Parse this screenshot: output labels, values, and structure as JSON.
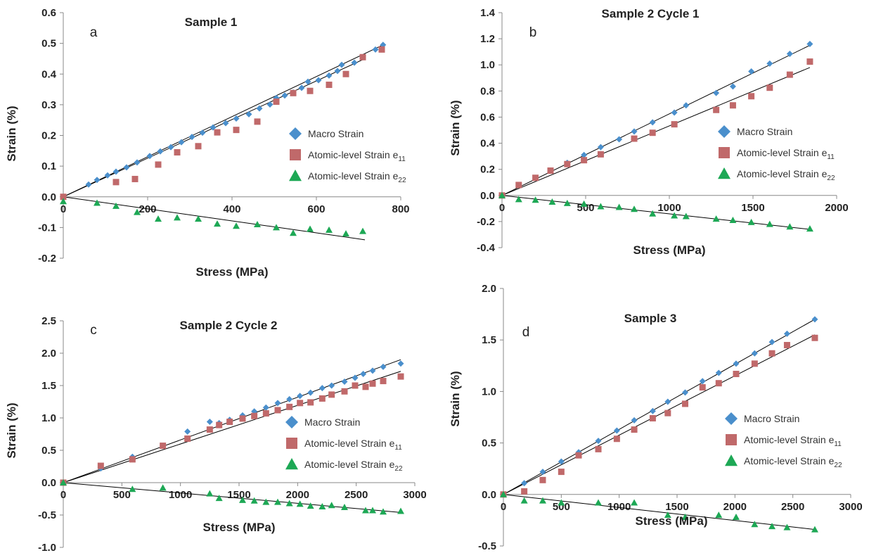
{
  "legend": {
    "macro": "Macro Strain",
    "e11_base": "Atomic-level Strain e",
    "e11_sub": "11",
    "e22_base": "Atomic-level Strain e",
    "e22_sub": "22"
  },
  "colors": {
    "macro": "#4A8FCC",
    "e11": "#C0696A",
    "e22": "#1DA855"
  },
  "chart_data": [
    {
      "type": "scatter",
      "title": "Sample 1",
      "panel_label": "a",
      "xlabel": "Stress (MPa)",
      "ylabel": "Strain (%)",
      "xlim": [
        0,
        800
      ],
      "ylim": [
        -0.2,
        0.6
      ],
      "xticks": [
        0,
        200,
        400,
        600,
        800
      ],
      "yticks": [
        -0.2,
        -0.1,
        0.0,
        0.1,
        0.2,
        0.3,
        0.4,
        0.5,
        0.6
      ],
      "ytick_labels": [
        "-0.2",
        "-0.1",
        "0.0",
        "0.1",
        "0.2",
        "0.3",
        "0.4",
        "0.5",
        "0.6"
      ],
      "series": [
        {
          "name": "Macro Strain",
          "marker": "diamond",
          "x": [
            0,
            60,
            80,
            105,
            125,
            150,
            175,
            205,
            230,
            255,
            280,
            305,
            330,
            355,
            385,
            410,
            440,
            465,
            490,
            505,
            525,
            545,
            565,
            580,
            605,
            630,
            650,
            660,
            690,
            710,
            740,
            758
          ],
          "y": [
            0,
            0.04,
            0.055,
            0.07,
            0.082,
            0.096,
            0.112,
            0.133,
            0.148,
            0.162,
            0.178,
            0.195,
            0.209,
            0.226,
            0.24,
            0.255,
            0.269,
            0.288,
            0.301,
            0.322,
            0.33,
            0.34,
            0.355,
            0.375,
            0.38,
            0.395,
            0.41,
            0.43,
            0.437,
            0.455,
            0.48,
            0.495
          ]
        },
        {
          "name": "Atomic-level Strain e11",
          "marker": "square",
          "x": [
            0,
            125,
            170,
            225,
            270,
            320,
            365,
            410,
            460,
            505,
            545,
            585,
            630,
            670,
            710,
            755
          ],
          "y": [
            0,
            0.048,
            0.058,
            0.105,
            0.145,
            0.165,
            0.21,
            0.218,
            0.245,
            0.31,
            0.338,
            0.345,
            0.365,
            0.4,
            0.455,
            0.48
          ]
        },
        {
          "name": "Atomic-level Strain e22",
          "marker": "triangle",
          "x": [
            0,
            80,
            125,
            175,
            225,
            270,
            320,
            365,
            410,
            460,
            505,
            545,
            585,
            630,
            670,
            710
          ],
          "y": [
            -0.015,
            -0.02,
            -0.03,
            -0.05,
            -0.072,
            -0.068,
            -0.072,
            -0.088,
            -0.095,
            -0.09,
            -0.1,
            -0.118,
            -0.105,
            -0.108,
            -0.12,
            -0.112
          ]
        }
      ],
      "fit_lines": [
        {
          "x": [
            0,
            758
          ],
          "y": [
            0,
            0.495
          ]
        },
        {
          "x": [
            0,
            715
          ],
          "y": [
            0,
            0.45
          ]
        },
        {
          "x": [
            0,
            715
          ],
          "y": [
            0,
            -0.14
          ]
        }
      ]
    },
    {
      "type": "scatter",
      "title": "Sample 2 Cycle 1",
      "panel_label": "b",
      "xlabel": "Stress (MPa)",
      "ylabel": "Strain (%)",
      "xlim": [
        0,
        2000
      ],
      "ylim": [
        -0.4,
        1.4
      ],
      "xticks": [
        0,
        500,
        1000,
        1500,
        2000
      ],
      "yticks": [
        -0.4,
        -0.2,
        0.0,
        0.2,
        0.4,
        0.6,
        0.8,
        1.0,
        1.2,
        1.4
      ],
      "ytick_labels": [
        "-0.4",
        "-0.2",
        "0.0",
        "0.2",
        "0.4",
        "0.6",
        "0.8",
        "1.0",
        "1.2",
        "1.4"
      ],
      "series": [
        {
          "name": "Macro Strain",
          "marker": "diamond",
          "x": [
            0,
            390,
            490,
            590,
            700,
            790,
            900,
            1030,
            1100,
            1280,
            1380,
            1490,
            1600,
            1720,
            1840
          ],
          "y": [
            0,
            0.25,
            0.31,
            0.37,
            0.43,
            0.49,
            0.56,
            0.635,
            0.69,
            0.785,
            0.835,
            0.95,
            1.01,
            1.085,
            1.16
          ]
        },
        {
          "name": "Atomic-level Strain e11",
          "marker": "square",
          "x": [
            0,
            100,
            200,
            290,
            390,
            490,
            590,
            790,
            900,
            1030,
            1280,
            1380,
            1490,
            1600,
            1720,
            1840
          ],
          "y": [
            0,
            0.08,
            0.135,
            0.19,
            0.24,
            0.27,
            0.315,
            0.435,
            0.48,
            0.545,
            0.655,
            0.69,
            0.76,
            0.825,
            0.925,
            1.025
          ]
        },
        {
          "name": "Atomic-level Strain e22",
          "marker": "triangle",
          "x": [
            0,
            100,
            200,
            300,
            390,
            490,
            590,
            700,
            790,
            900,
            1030,
            1100,
            1280,
            1380,
            1490,
            1600,
            1720,
            1840
          ],
          "y": [
            0,
            -0.03,
            -0.035,
            -0.05,
            -0.06,
            -0.065,
            -0.085,
            -0.09,
            -0.105,
            -0.14,
            -0.155,
            -0.16,
            -0.18,
            -0.19,
            -0.205,
            -0.22,
            -0.24,
            -0.255
          ]
        }
      ],
      "fit_lines": [
        {
          "x": [
            0,
            1840
          ],
          "y": [
            0,
            1.15
          ]
        },
        {
          "x": [
            0,
            1840
          ],
          "y": [
            0,
            0.98
          ]
        },
        {
          "x": [
            0,
            1840
          ],
          "y": [
            0,
            -0.26
          ]
        }
      ]
    },
    {
      "type": "scatter",
      "title": "Sample 2 Cycle 2",
      "panel_label": "c",
      "xlabel": "Stress (MPa)",
      "ylabel": "Strain (%)",
      "xlim": [
        0,
        3000
      ],
      "ylim": [
        -1.0,
        2.5
      ],
      "xticks": [
        0,
        500,
        1000,
        1500,
        2000,
        2500,
        3000
      ],
      "yticks": [
        -1.0,
        -0.5,
        0.0,
        0.5,
        1.0,
        1.5,
        2.0,
        2.5
      ],
      "ytick_labels": [
        "-1.0",
        "-0.5",
        "0.0",
        "0.5",
        "1.0",
        "1.5",
        "2.0",
        "2.5"
      ],
      "series": [
        {
          "name": "Macro Strain",
          "marker": "diamond",
          "x": [
            0,
            320,
            590,
            1060,
            1250,
            1330,
            1420,
            1530,
            1630,
            1730,
            1830,
            1930,
            2020,
            2110,
            2210,
            2290,
            2400,
            2490,
            2560,
            2640,
            2730,
            2880
          ],
          "y": [
            0,
            0.22,
            0.4,
            0.79,
            0.94,
            0.92,
            0.97,
            1.04,
            1.1,
            1.16,
            1.23,
            1.29,
            1.34,
            1.39,
            1.46,
            1.5,
            1.56,
            1.62,
            1.68,
            1.73,
            1.79,
            1.84
          ]
        },
        {
          "name": "Atomic-level Strain e11",
          "marker": "square",
          "x": [
            0,
            320,
            590,
            850,
            1060,
            1250,
            1330,
            1420,
            1530,
            1630,
            1730,
            1830,
            1930,
            2020,
            2110,
            2210,
            2290,
            2400,
            2490,
            2580,
            2640,
            2730,
            2880
          ],
          "y": [
            0,
            0.26,
            0.36,
            0.57,
            0.68,
            0.82,
            0.89,
            0.94,
            0.99,
            1.03,
            1.07,
            1.12,
            1.17,
            1.23,
            1.24,
            1.3,
            1.36,
            1.41,
            1.5,
            1.48,
            1.53,
            1.57,
            1.64
          ]
        },
        {
          "name": "Atomic-level Strain e22",
          "marker": "triangle",
          "x": [
            0,
            590,
            850,
            1250,
            1330,
            1530,
            1630,
            1730,
            1830,
            1930,
            2020,
            2110,
            2210,
            2290,
            2400,
            2580,
            2640,
            2730,
            2880
          ],
          "y": [
            0,
            -0.1,
            -0.08,
            -0.17,
            -0.24,
            -0.27,
            -0.28,
            -0.3,
            -0.3,
            -0.32,
            -0.33,
            -0.36,
            -0.37,
            -0.35,
            -0.38,
            -0.43,
            -0.43,
            -0.45,
            -0.44
          ]
        }
      ],
      "fit_lines": [
        {
          "x": [
            0,
            2880
          ],
          "y": [
            0,
            1.9
          ]
        },
        {
          "x": [
            0,
            2880
          ],
          "y": [
            0,
            1.72
          ]
        },
        {
          "x": [
            0,
            2880
          ],
          "y": [
            0,
            -0.46
          ]
        }
      ]
    },
    {
      "type": "scatter",
      "title": "Sample 3",
      "panel_label": "d",
      "xlabel": "Stress (MPa)",
      "ylabel": "Strain (%)",
      "xlim": [
        0,
        3000
      ],
      "ylim": [
        -0.5,
        2.0
      ],
      "xticks": [
        0,
        500,
        1000,
        1500,
        2000,
        2500,
        3000
      ],
      "yticks": [
        -0.5,
        0.0,
        0.5,
        1.0,
        1.5,
        2.0
      ],
      "ytick_labels": [
        "-0.5",
        "0.0",
        "0.5",
        "1.0",
        "1.5",
        "2.0"
      ],
      "series": [
        {
          "name": "Macro Strain",
          "marker": "diamond",
          "x": [
            0,
            180,
            340,
            500,
            650,
            820,
            980,
            1130,
            1290,
            1420,
            1570,
            1720,
            1860,
            2010,
            2170,
            2320,
            2450,
            2690
          ],
          "y": [
            0,
            0.11,
            0.22,
            0.32,
            0.41,
            0.52,
            0.62,
            0.72,
            0.81,
            0.9,
            0.99,
            1.1,
            1.18,
            1.27,
            1.37,
            1.48,
            1.56,
            1.7
          ]
        },
        {
          "name": "Atomic-level Strain e11",
          "marker": "square",
          "x": [
            0,
            180,
            340,
            500,
            650,
            820,
            980,
            1130,
            1290,
            1420,
            1570,
            1720,
            1860,
            2010,
            2170,
            2320,
            2450,
            2690
          ],
          "y": [
            0,
            0.03,
            0.14,
            0.22,
            0.38,
            0.44,
            0.54,
            0.63,
            0.74,
            0.79,
            0.88,
            1.04,
            1.08,
            1.17,
            1.27,
            1.37,
            1.45,
            1.52
          ]
        },
        {
          "name": "Atomic-level Strain e22",
          "marker": "triangle",
          "x": [
            0,
            180,
            340,
            500,
            820,
            1130,
            1420,
            1570,
            1860,
            2010,
            2170,
            2320,
            2450,
            2690
          ],
          "y": [
            0,
            -0.06,
            -0.06,
            -0.08,
            -0.08,
            -0.08,
            -0.2,
            -0.22,
            -0.2,
            -0.22,
            -0.29,
            -0.31,
            -0.32,
            -0.34
          ]
        }
      ],
      "fit_lines": [
        {
          "x": [
            0,
            2690
          ],
          "y": [
            0,
            1.7
          ]
        },
        {
          "x": [
            0,
            2690
          ],
          "y": [
            0,
            1.55
          ]
        },
        {
          "x": [
            0,
            2690
          ],
          "y": [
            0,
            -0.34
          ]
        }
      ]
    }
  ]
}
